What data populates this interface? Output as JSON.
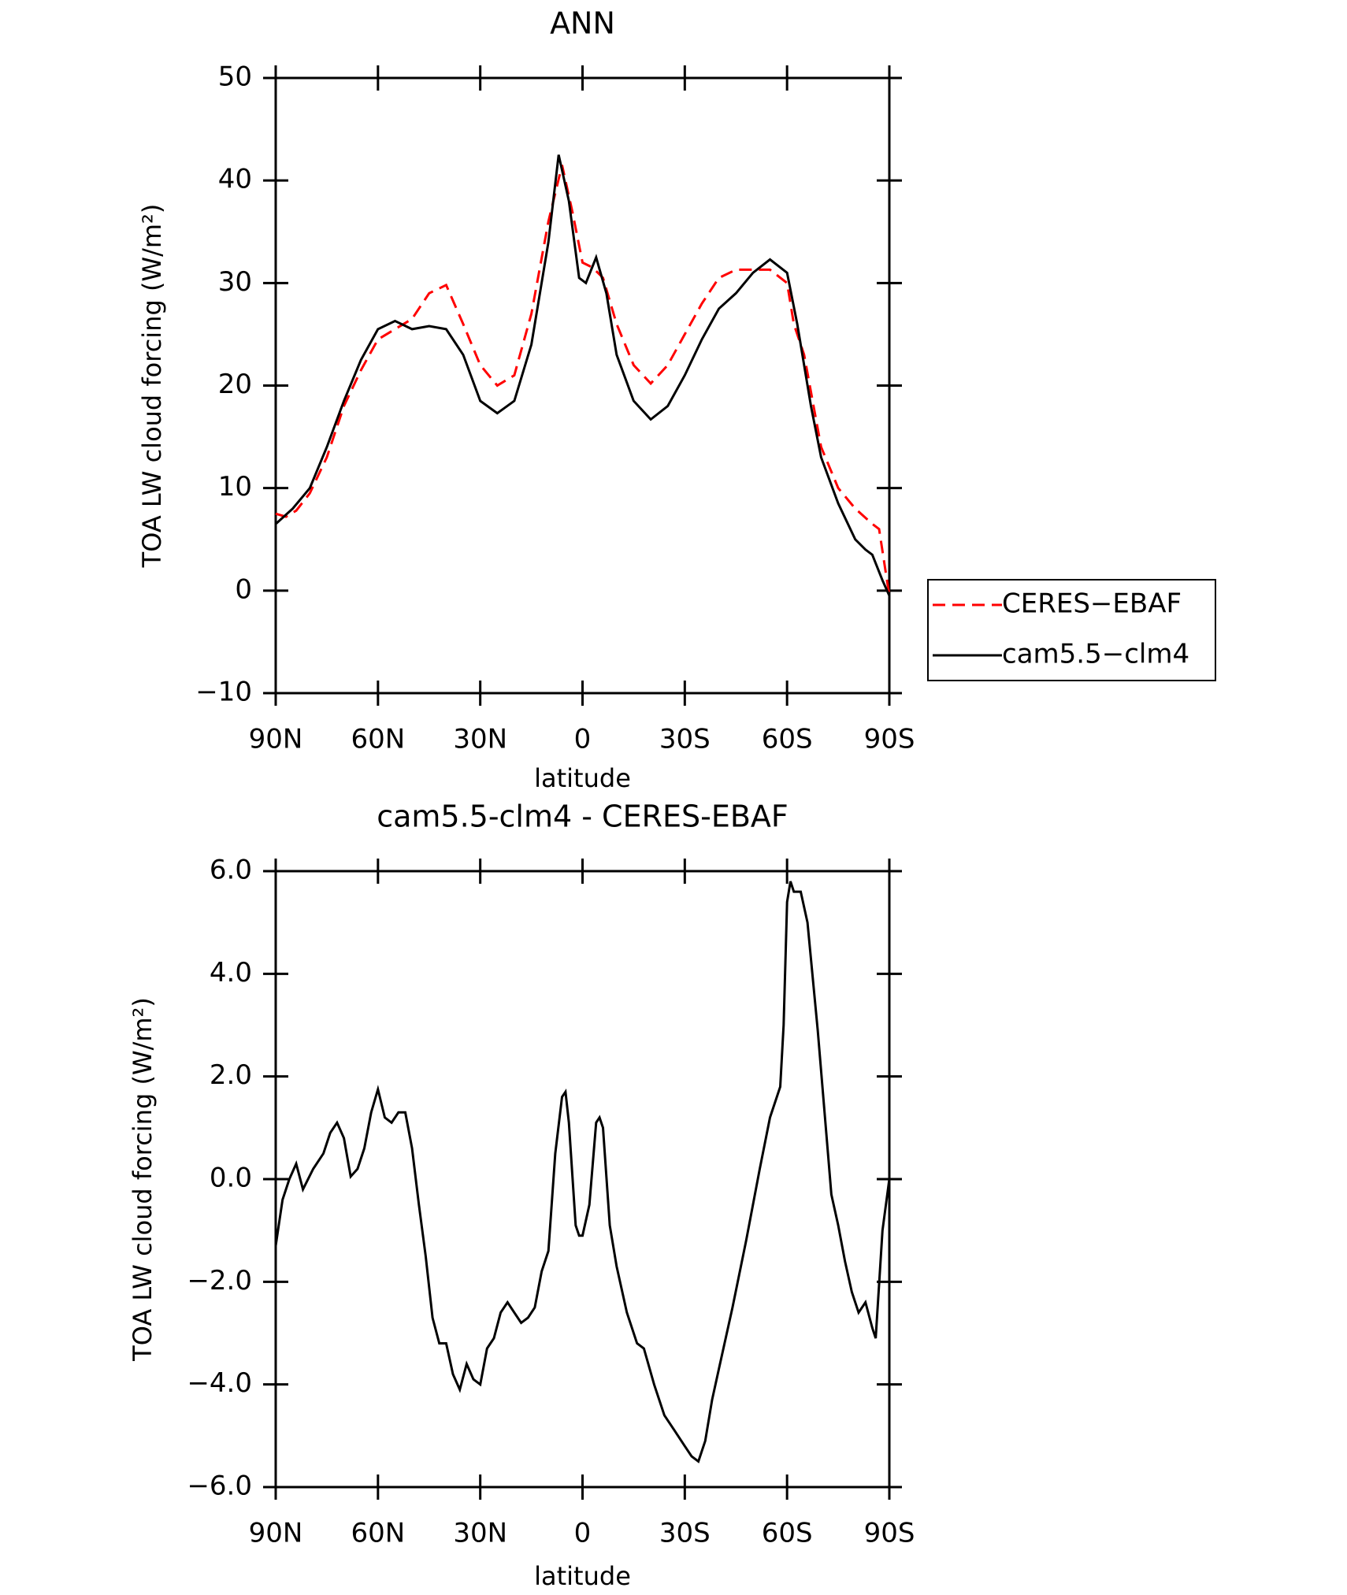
{
  "chart_data": [
    {
      "type": "line",
      "title": "ANN",
      "x_label": "latitude",
      "y_label": "TOA LW cloud forcing (W/m²)",
      "xlim": [
        90,
        -90
      ],
      "xticks": [
        {
          "value": 90,
          "label": "90N"
        },
        {
          "value": 60,
          "label": "60N"
        },
        {
          "value": 30,
          "label": "30N"
        },
        0,
        {
          "value": -30,
          "label": "30S"
        },
        {
          "value": -60,
          "label": "60S"
        },
        {
          "value": -90,
          "label": "90S"
        }
      ],
      "ylim": [
        -10,
        50
      ],
      "yticks": [
        {
          "value": -10,
          "label": "−10"
        },
        0,
        10,
        20,
        30,
        40,
        50
      ],
      "legend": "right",
      "series": [
        {
          "name": "CERES−EBAF",
          "color": "#ff0000",
          "dash": "dashed",
          "x": [
            90,
            87,
            84,
            80,
            75,
            70,
            65,
            60,
            55,
            50,
            45,
            40,
            35,
            30,
            25,
            20,
            15,
            10,
            6,
            3,
            0,
            -3,
            -6,
            -10,
            -15,
            -20,
            -25,
            -30,
            -35,
            -40,
            -45,
            -50,
            -55,
            -60,
            -62,
            -65,
            -70,
            -75,
            -80,
            -85,
            -87,
            -90
          ],
          "values": [
            7.5,
            7.2,
            7.8,
            9.5,
            13,
            18,
            21.5,
            24.5,
            25.5,
            26.5,
            29,
            29.8,
            26,
            22,
            20,
            21,
            27,
            36,
            41.5,
            37,
            32,
            31.5,
            30.5,
            26,
            22,
            20.2,
            22,
            25,
            28,
            30.5,
            31.3,
            31.3,
            31.3,
            30,
            26,
            23,
            14,
            10,
            8,
            6.5,
            6,
            -0.5
          ]
        },
        {
          "name": "cam5.5−clm4",
          "color": "#000000",
          "dash": "solid",
          "x": [
            90,
            85,
            80,
            75,
            70,
            65,
            60,
            55,
            50,
            45,
            40,
            35,
            30,
            25,
            20,
            15,
            10,
            7,
            4,
            1,
            -1,
            -4,
            -7,
            -10,
            -15,
            -20,
            -25,
            -30,
            -35,
            -40,
            -45,
            -50,
            -55,
            -60,
            -63,
            -67,
            -70,
            -75,
            -80,
            -83,
            -85,
            -88,
            -90
          ],
          "values": [
            6.5,
            8,
            10,
            14,
            18.5,
            22.5,
            25.5,
            26.3,
            25.5,
            25.8,
            25.5,
            23,
            18.5,
            17.3,
            18.5,
            24,
            34,
            42.5,
            38,
            30.5,
            30,
            32.5,
            29,
            23,
            18.5,
            16.7,
            18,
            21,
            24.5,
            27.5,
            29,
            31,
            32.3,
            31,
            26,
            18,
            13,
            8.5,
            5,
            4,
            3.5,
            1,
            -0.5
          ]
        }
      ]
    },
    {
      "type": "line",
      "title": "cam5.5-clm4 - CERES-EBAF",
      "x_label": "latitude",
      "y_label": "TOA LW cloud forcing (W/m²)",
      "xlim": [
        90,
        -90
      ],
      "xticks": [
        {
          "value": 90,
          "label": "90N"
        },
        {
          "value": 60,
          "label": "60N"
        },
        {
          "value": 30,
          "label": "30N"
        },
        0,
        {
          "value": -30,
          "label": "30S"
        },
        {
          "value": -60,
          "label": "60S"
        },
        {
          "value": -90,
          "label": "90S"
        }
      ],
      "ylim": [
        -6,
        6
      ],
      "yticks": [
        {
          "value": -6,
          "label": "−6.0"
        },
        {
          "value": -4,
          "label": "−4.0"
        },
        {
          "value": -2,
          "label": "−2.0"
        },
        {
          "value": 0,
          "label": "0.0"
        },
        {
          "value": 2,
          "label": "2.0"
        },
        {
          "value": 4,
          "label": "4.0"
        },
        {
          "value": 6,
          "label": "6.0"
        }
      ],
      "series": [
        {
          "color": "#000000",
          "dash": "solid",
          "x": [
            90,
            88,
            86,
            84,
            82,
            79,
            76,
            74,
            72,
            70,
            68,
            66,
            64,
            62,
            60,
            58,
            56,
            54,
            52,
            50,
            48,
            46,
            44,
            42,
            40,
            38,
            36,
            34,
            32,
            30,
            28,
            26,
            24,
            22,
            20,
            18,
            16,
            14,
            12,
            10,
            8,
            6,
            5,
            4,
            2,
            1,
            0,
            -2,
            -4,
            -5,
            -6,
            -8,
            -10,
            -13,
            -16,
            -18,
            -21,
            -24,
            -27,
            -30,
            -32,
            -34,
            -36,
            -38,
            -40,
            -44,
            -48,
            -52,
            -55,
            -58,
            -59,
            -60,
            -61,
            -62,
            -64,
            -66,
            -69,
            -72,
            -73,
            -75,
            -77,
            -79,
            -81,
            -83,
            -85,
            -86,
            -88,
            -90
          ],
          "values": [
            -1.3,
            -0.4,
            0,
            0.3,
            -0.2,
            0.2,
            0.5,
            0.9,
            1.1,
            0.8,
            0.05,
            0.2,
            0.6,
            1.3,
            1.75,
            1.2,
            1.1,
            1.3,
            1.3,
            0.6,
            -0.5,
            -1.5,
            -2.7,
            -3.2,
            -3.2,
            -3.8,
            -4.1,
            -3.6,
            -3.9,
            -4,
            -3.3,
            -3.1,
            -2.6,
            -2.4,
            -2.6,
            -2.8,
            -2.7,
            -2.5,
            -1.8,
            -1.4,
            0.5,
            1.6,
            1.7,
            1.1,
            -0.9,
            -1.1,
            -1.1,
            -0.5,
            1.1,
            1.2,
            1,
            -0.9,
            -1.7,
            -2.6,
            -3.2,
            -3.3,
            -4,
            -4.6,
            -4.9,
            -5.2,
            -5.4,
            -5.5,
            -5.1,
            -4.3,
            -3.7,
            -2.5,
            -1.2,
            0.2,
            1.2,
            1.8,
            3,
            5.4,
            5.8,
            5.6,
            5.6,
            5,
            2.9,
            0.5,
            -0.3,
            -0.9,
            -1.6,
            -2.2,
            -2.6,
            -2.4,
            -2.9,
            -3.1,
            -1,
            0
          ]
        }
      ]
    }
  ]
}
